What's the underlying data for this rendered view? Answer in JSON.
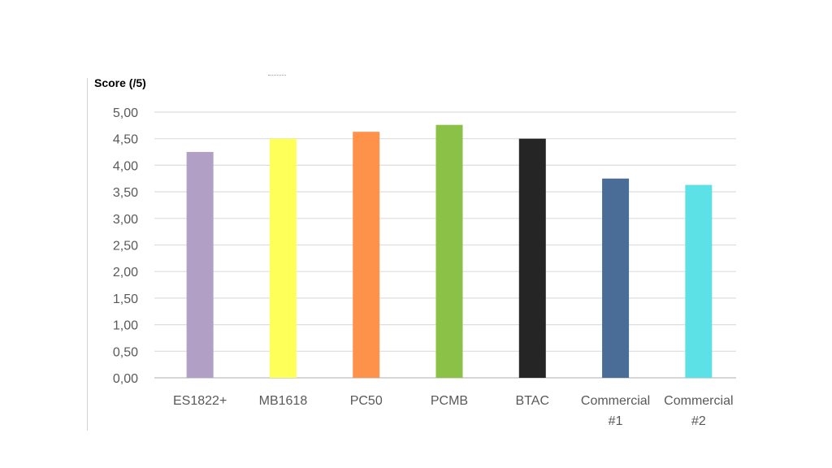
{
  "chart_data": {
    "type": "bar",
    "ylabel": "Score (/5)",
    "xlabel": "",
    "title": "",
    "ylim": [
      0,
      5
    ],
    "yticks": [
      0,
      0.5,
      1,
      1.5,
      2,
      2.5,
      3,
      3.5,
      4,
      4.5,
      5
    ],
    "ytick_labels": [
      "0,00",
      "0,50",
      "1,00",
      "1,50",
      "2,00",
      "2,50",
      "3,00",
      "3,50",
      "4,00",
      "4,50",
      "5,00"
    ],
    "grid": true,
    "legend": "none",
    "categories": [
      [
        "ES1822+"
      ],
      [
        "MB1618"
      ],
      [
        "PC50"
      ],
      [
        "PCMB"
      ],
      [
        "BTAC"
      ],
      [
        "Commercial",
        "#1"
      ],
      [
        "Commercial",
        "#2"
      ]
    ],
    "values": [
      4.25,
      4.5,
      4.63,
      4.76,
      4.5,
      3.75,
      3.63
    ],
    "colors": [
      "#b29fc6",
      "#ffff5a",
      "#ff924a",
      "#8bc147",
      "#252525",
      "#4a6d98",
      "#5ce1e6"
    ]
  }
}
